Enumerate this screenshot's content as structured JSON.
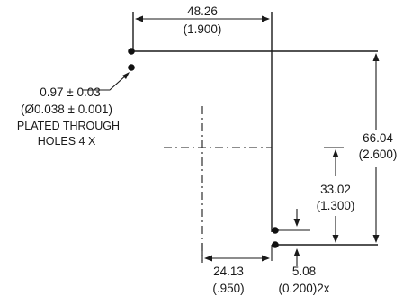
{
  "dimensions": {
    "width_mm": "48.26",
    "width_in": "(1.900)",
    "height_mm": "66.04",
    "height_in": "(2.600)",
    "center_height_mm": "33.02",
    "center_height_in": "(1.300)",
    "offset_mm": "24.13",
    "offset_in": "(.950)",
    "pitch_mm": "5.08",
    "pitch_in": "(0.200)2x"
  },
  "hole_note": {
    "line1": "0.97 ± 0.03",
    "line2": "(Ø0.038 ± 0.001)",
    "line3": "PLATED THROUGH",
    "line4": "HOLES 4 X"
  }
}
